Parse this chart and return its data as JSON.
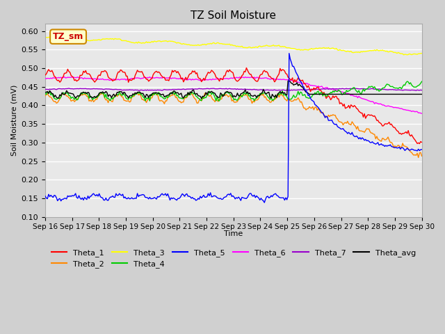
{
  "title": "TZ Soil Moisture",
  "ylabel": "Soil Moisture (mV)",
  "xlabel": "Time",
  "n_days": 14,
  "ylim": [
    0.1,
    0.62
  ],
  "yticks": [
    0.1,
    0.15,
    0.2,
    0.25,
    0.3,
    0.35,
    0.4,
    0.45,
    0.5,
    0.55,
    0.6
  ],
  "x_tick_labels": [
    "Sep 16",
    "Sep 17",
    "Sep 18",
    "Sep 19",
    "Sep 20",
    "Sep 21",
    "Sep 22",
    "Sep 23",
    "Sep 24",
    "Sep 25",
    "Sep 26",
    "Sep 27",
    "Sep 28",
    "Sep 29",
    "Sep 30"
  ],
  "annotation_label": "TZ_sm",
  "annotation_color": "#cc0000",
  "annotation_bg": "#ffffcc",
  "colors": {
    "Theta_1": "#ff0000",
    "Theta_2": "#ff8800",
    "Theta_3": "#ffff00",
    "Theta_4": "#00cc00",
    "Theta_5": "#0000ff",
    "Theta_6": "#ff00ff",
    "Theta_7": "#9900cc",
    "Theta_avg": "#000000"
  },
  "background_color": "#e8e8e8",
  "fig_background": "#d0d0d0",
  "grid_color": "#ffffff"
}
